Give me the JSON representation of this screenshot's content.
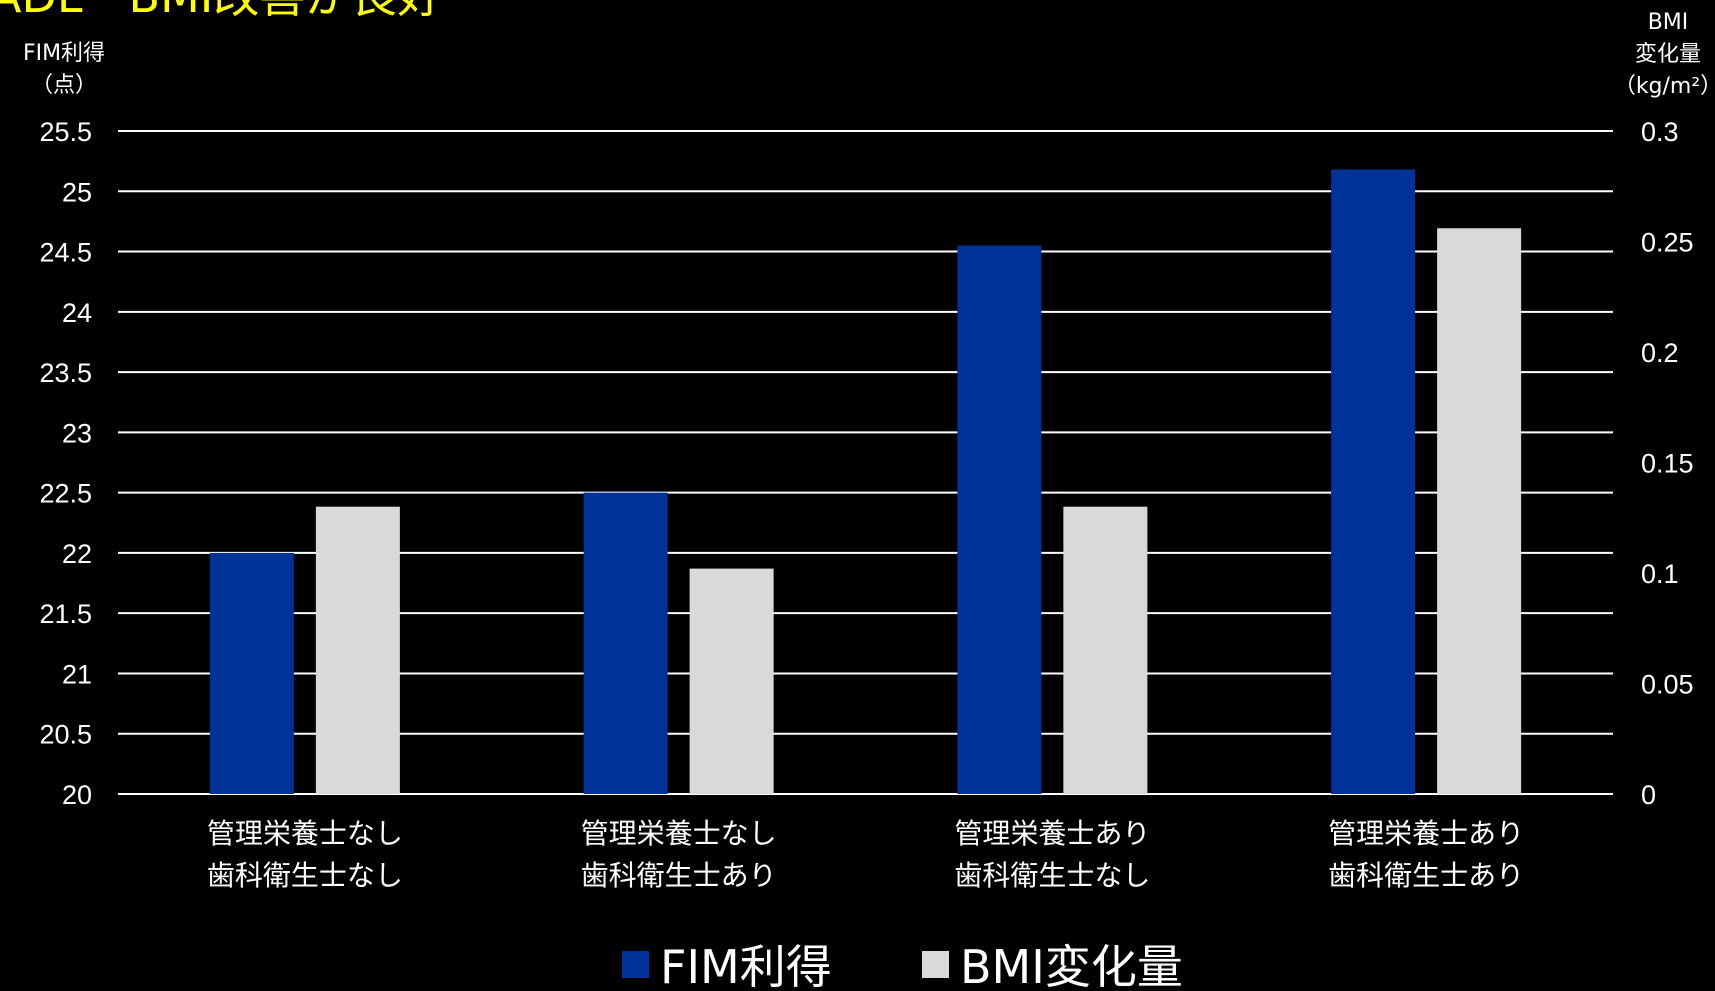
{
  "title": "ADL・BMI改善が良好",
  "chart_data": {
    "type": "bar",
    "categories": [
      [
        "管理栄養士なし",
        "歯科衛生士なし"
      ],
      [
        "管理栄養士なし",
        "歯科衛生士あり"
      ],
      [
        "管理栄養士あり",
        "歯科衛生士なし"
      ],
      [
        "管理栄養士あり",
        "歯科衛生士あり"
      ]
    ],
    "series": [
      {
        "name": "FIM利得",
        "axis": "left",
        "color": "#003399",
        "values": [
          22.0,
          22.5,
          24.55,
          25.18
        ]
      },
      {
        "name": "BMI変化量",
        "axis": "right",
        "color": "#d9d9d9",
        "values": [
          0.13,
          0.102,
          0.13,
          0.256
        ]
      }
    ],
    "y_left": {
      "label_lines": [
        "FIM利得",
        "（点）"
      ],
      "ylim": [
        20,
        25.5
      ],
      "ticks": [
        "20",
        "20.5",
        "21",
        "21.5",
        "22",
        "22.5",
        "23",
        "23.5",
        "24",
        "24.5",
        "25",
        "25.5"
      ]
    },
    "y_right": {
      "label_lines": [
        "BMI",
        "変化量",
        "（kg/m²）"
      ],
      "ylim": [
        0,
        0.3
      ],
      "ticks": [
        "0",
        "0.05",
        "0.1",
        "0.15",
        "0.2",
        "0.25",
        "0.3"
      ]
    },
    "grid": true,
    "legend_position": "bottom"
  }
}
